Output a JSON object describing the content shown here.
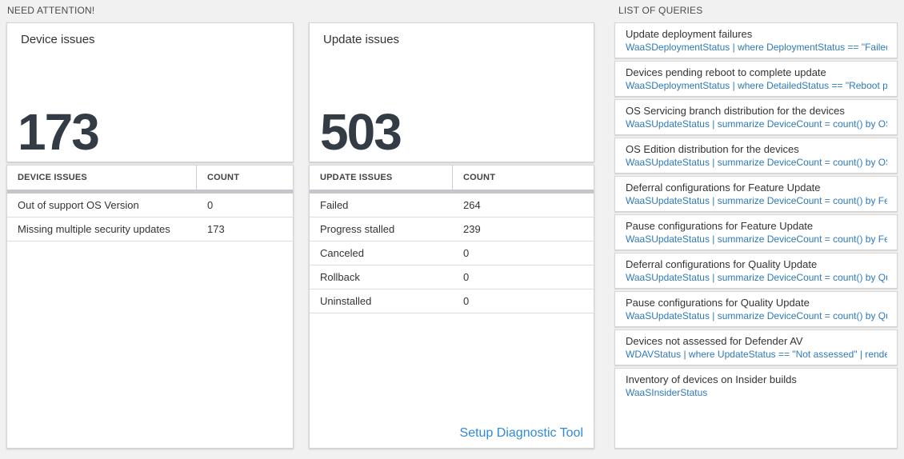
{
  "colors": {
    "page_background": "#f1f1f1",
    "big_number_text": "#333b45",
    "query_link_blue": "#2e79ba",
    "setup_link_blue": "#2e8ad5",
    "scrollbar_gray": "#c3c6ca"
  },
  "attention": {
    "header": "NEED ATTENTION!",
    "device_card": {
      "title": "Device issues",
      "value": "173"
    },
    "device_table": {
      "headers": [
        "DEVICE ISSUES",
        "COUNT"
      ],
      "rows": [
        [
          "Out of support OS Version",
          "0"
        ],
        [
          "Missing multiple security updates",
          "173"
        ]
      ]
    },
    "update_card": {
      "title": "Update issues",
      "value": "503"
    },
    "update_table": {
      "headers": [
        "UPDATE ISSUES",
        "COUNT"
      ],
      "rows": [
        [
          "Failed",
          "264"
        ],
        [
          "Progress stalled",
          "239"
        ],
        [
          "Canceled",
          "0"
        ],
        [
          "Rollback",
          "0"
        ],
        [
          "Uninstalled",
          "0"
        ]
      ]
    },
    "setup_link": "Setup Diagnostic Tool"
  },
  "queries": {
    "header": "LIST OF QUERIES",
    "items": [
      {
        "title": "Update deployment failures",
        "query": "WaaSDeploymentStatus | where DeploymentStatus == \"Failed\" |..."
      },
      {
        "title": "Devices pending reboot to complete update",
        "query": "WaaSDeploymentStatus | where DetailedStatus == \"Reboot pend..."
      },
      {
        "title": "OS Servicing branch distribution for the devices",
        "query": "WaaSUpdateStatus | summarize DeviceCount = count() by OSSer..."
      },
      {
        "title": "OS Edition distribution for the devices",
        "query": "WaaSUpdateStatus | summarize DeviceCount = count() by OSEdit..."
      },
      {
        "title": "Deferral configurations for Feature Update",
        "query": "WaaSUpdateStatus | summarize DeviceCount = count() by Featur..."
      },
      {
        "title": "Pause configurations for Feature Update",
        "query": "WaaSUpdateStatus | summarize DeviceCount = count() by Featur..."
      },
      {
        "title": "Deferral configurations for Quality Update",
        "query": "WaaSUpdateStatus | summarize DeviceCount = count() by Qualit..."
      },
      {
        "title": "Pause configurations for Quality Update",
        "query": "WaaSUpdateStatus | summarize DeviceCount = count() by Qualit..."
      },
      {
        "title": "Devices not assessed for Defender AV",
        "query": "WDAVStatus | where UpdateStatus == \"Not assessed\" | render ta..."
      },
      {
        "title": "Inventory of devices on Insider builds",
        "query": "WaaSInsiderStatus"
      }
    ]
  }
}
